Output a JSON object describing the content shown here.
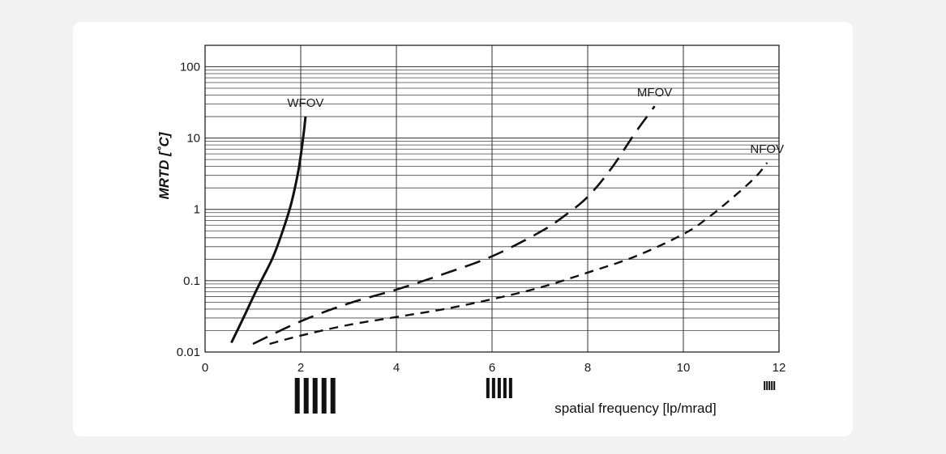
{
  "chart_data": {
    "type": "line",
    "xlabel": "spatial frequency [lp/mrad]",
    "ylabel": "MRTD [˚C]",
    "xlim": [
      0,
      12
    ],
    "ylim": [
      0.01,
      200
    ],
    "yscale": "log",
    "grid": true,
    "x_ticks": [
      0,
      2,
      4,
      6,
      8,
      10,
      12
    ],
    "x_tick_labels": [
      "0",
      "2",
      "4",
      "6",
      "8",
      "10",
      "12"
    ],
    "y_ticks": [
      0.01,
      0.1,
      1,
      10,
      100
    ],
    "y_tick_labels": [
      "0.01",
      "0.1",
      "1",
      "10",
      "100"
    ],
    "series": [
      {
        "name": "WFOV",
        "style": "solid",
        "x": [
          0.55,
          0.8,
          1.1,
          1.4,
          1.6,
          1.8,
          1.95,
          2.05,
          2.1
        ],
        "y": [
          0.0135,
          0.03,
          0.08,
          0.2,
          0.45,
          1.2,
          3.5,
          10,
          20
        ]
      },
      {
        "name": "MFOV",
        "style": "long-dash",
        "x": [
          1.0,
          2.0,
          3.0,
          4.0,
          5.0,
          6.0,
          7.0,
          7.5,
          8.0,
          8.5,
          9.0,
          9.4
        ],
        "y": [
          0.013,
          0.027,
          0.048,
          0.075,
          0.125,
          0.22,
          0.48,
          0.8,
          1.5,
          3.8,
          12,
          28
        ]
      },
      {
        "name": "NFOV",
        "style": "short-dash",
        "x": [
          1.35,
          2.0,
          3.0,
          4.0,
          5.0,
          6.0,
          7.0,
          8.0,
          9.0,
          10.0,
          10.5,
          11.0,
          11.5,
          11.75
        ],
        "y": [
          0.013,
          0.017,
          0.024,
          0.031,
          0.04,
          0.055,
          0.08,
          0.13,
          0.22,
          0.45,
          0.75,
          1.4,
          2.8,
          4.5
        ]
      }
    ],
    "bar_target_icons": [
      {
        "x": 2.3,
        "bars": 5,
        "size": "large"
      },
      {
        "x": 6.15,
        "bars": 5,
        "size": "medium"
      },
      {
        "x": 11.8,
        "bars": 5,
        "size": "small"
      }
    ]
  }
}
